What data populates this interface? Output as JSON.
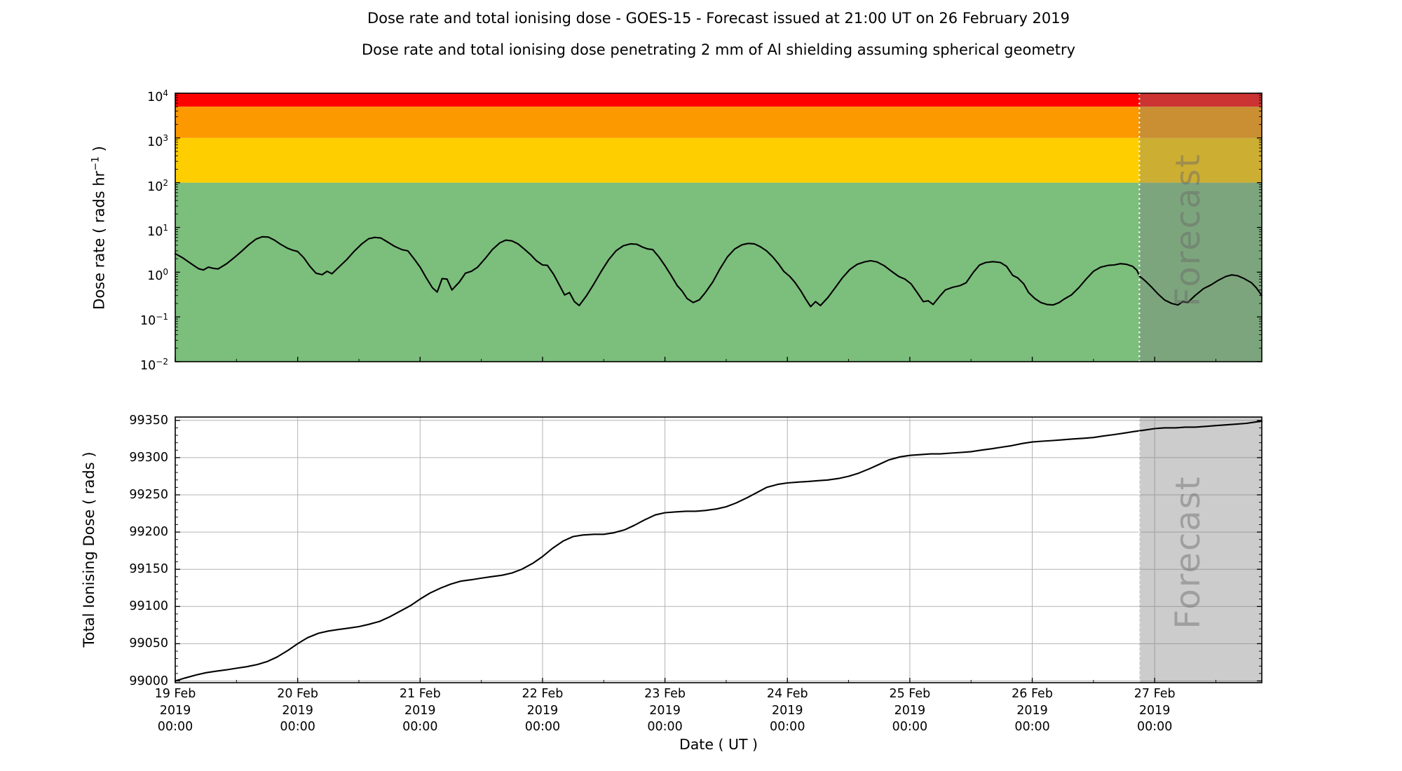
{
  "header": {
    "title_line1": "Dose rate and total ionising dose - GOES-15 - Forecast issued at 21:00 UT on 26 February 2019",
    "title_line2": "Dose rate and total ionising dose penetrating 2 mm of Al shielding assuming spherical geometry"
  },
  "dose_rate_plot": {
    "ylabel_prefix": "Dose rate ( rads hr",
    "ylabel_sup": "−1",
    "ylabel_suffix": " )",
    "forecast_label": "Forecast"
  },
  "tid_plot": {
    "ylabel": "Total Ionising Dose ( rads )",
    "forecast_label": "Forecast"
  },
  "x_axis": {
    "label": "Date ( UT )",
    "ticks": [
      {
        "date": "19 Feb",
        "year": "2019",
        "time": "00:00"
      },
      {
        "date": "20 Feb",
        "year": "2019",
        "time": "00:00"
      },
      {
        "date": "21 Feb",
        "year": "2019",
        "time": "00:00"
      },
      {
        "date": "22 Feb",
        "year": "2019",
        "time": "00:00"
      },
      {
        "date": "23 Feb",
        "year": "2019",
        "time": "00:00"
      },
      {
        "date": "24 Feb",
        "year": "2019",
        "time": "00:00"
      },
      {
        "date": "25 Feb",
        "year": "2019",
        "time": "00:00"
      },
      {
        "date": "26 Feb",
        "year": "2019",
        "time": "00:00"
      },
      {
        "date": "27 Feb",
        "year": "2019",
        "time": "00:00"
      }
    ]
  },
  "colors": {
    "band_red": "#ff0000",
    "band_orange": "#fc9800",
    "band_yellow": "#ffce00",
    "band_green": "#7cbe7c",
    "forecast_overlay": "rgba(128,128,128,0.4)",
    "forecast_text": "#696969",
    "forecast_divider": "#ffffff",
    "grid": "#b3b3b3",
    "curve": "#000000"
  },
  "chart_data": [
    {
      "type": "line",
      "title": "Dose rate",
      "ylabel": "Dose rate ( rads hr^-1 )",
      "yscale": "log",
      "ylim": [
        0.01,
        10000
      ],
      "y_tick_exponents": [
        "4",
        "3",
        "2",
        "1",
        "0",
        "−1",
        "−2"
      ],
      "x_unit": "days since 19 Feb 2019 00:00 UT",
      "xlim": [
        0,
        8.875
      ],
      "forecast_start_x": 7.875,
      "forecast_start_label": "26 Feb 2019 21:00 UT",
      "grid": false,
      "bands": [
        {
          "name": "red-alert",
          "from": 5000,
          "to": 10000,
          "color": "#ff0000"
        },
        {
          "name": "orange-warning",
          "from": 1000,
          "to": 5000,
          "color": "#fc9800"
        },
        {
          "name": "yellow-caution",
          "from": 100,
          "to": 1000,
          "color": "#ffce00"
        },
        {
          "name": "green-nominal",
          "from": 0.01,
          "to": 100,
          "color": "#7cbe7c"
        }
      ],
      "points": [
        [
          0.0,
          2.6
        ],
        [
          0.06,
          2.1
        ],
        [
          0.13,
          1.55
        ],
        [
          0.19,
          1.2
        ],
        [
          0.23,
          1.12
        ],
        [
          0.27,
          1.3
        ],
        [
          0.31,
          1.22
        ],
        [
          0.35,
          1.18
        ],
        [
          0.42,
          1.55
        ],
        [
          0.48,
          2.1
        ],
        [
          0.54,
          2.9
        ],
        [
          0.6,
          4.1
        ],
        [
          0.66,
          5.5
        ],
        [
          0.71,
          6.2
        ],
        [
          0.76,
          6.1
        ],
        [
          0.81,
          5.2
        ],
        [
          0.86,
          4.2
        ],
        [
          0.92,
          3.4
        ],
        [
          0.96,
          3.1
        ],
        [
          1.0,
          2.9
        ],
        [
          1.05,
          2.1
        ],
        [
          1.1,
          1.35
        ],
        [
          1.15,
          0.95
        ],
        [
          1.2,
          0.88
        ],
        [
          1.24,
          1.05
        ],
        [
          1.28,
          0.92
        ],
        [
          1.33,
          1.25
        ],
        [
          1.4,
          1.9
        ],
        [
          1.46,
          2.9
        ],
        [
          1.52,
          4.2
        ],
        [
          1.58,
          5.6
        ],
        [
          1.63,
          6.0
        ],
        [
          1.68,
          5.8
        ],
        [
          1.73,
          4.8
        ],
        [
          1.79,
          3.8
        ],
        [
          1.85,
          3.2
        ],
        [
          1.9,
          3.0
        ],
        [
          1.95,
          2.0
        ],
        [
          2.0,
          1.3
        ],
        [
          2.05,
          0.75
        ],
        [
          2.1,
          0.45
        ],
        [
          2.14,
          0.36
        ],
        [
          2.18,
          0.72
        ],
        [
          2.22,
          0.7
        ],
        [
          2.26,
          0.4
        ],
        [
          2.32,
          0.6
        ],
        [
          2.37,
          0.95
        ],
        [
          2.42,
          1.05
        ],
        [
          2.47,
          1.3
        ],
        [
          2.53,
          2.0
        ],
        [
          2.59,
          3.2
        ],
        [
          2.65,
          4.5
        ],
        [
          2.7,
          5.2
        ],
        [
          2.75,
          5.0
        ],
        [
          2.8,
          4.3
        ],
        [
          2.85,
          3.3
        ],
        [
          2.9,
          2.5
        ],
        [
          2.95,
          1.8
        ],
        [
          3.0,
          1.45
        ],
        [
          3.04,
          1.42
        ],
        [
          3.09,
          0.9
        ],
        [
          3.14,
          0.5
        ],
        [
          3.18,
          0.31
        ],
        [
          3.22,
          0.35
        ],
        [
          3.26,
          0.22
        ],
        [
          3.3,
          0.18
        ],
        [
          3.36,
          0.3
        ],
        [
          3.42,
          0.55
        ],
        [
          3.48,
          1.05
        ],
        [
          3.54,
          1.9
        ],
        [
          3.6,
          3.0
        ],
        [
          3.66,
          3.9
        ],
        [
          3.72,
          4.3
        ],
        [
          3.77,
          4.2
        ],
        [
          3.82,
          3.6
        ],
        [
          3.86,
          3.3
        ],
        [
          3.9,
          3.2
        ],
        [
          3.95,
          2.2
        ],
        [
          4.0,
          1.4
        ],
        [
          4.05,
          0.85
        ],
        [
          4.1,
          0.5
        ],
        [
          4.14,
          0.38
        ],
        [
          4.18,
          0.26
        ],
        [
          4.23,
          0.21
        ],
        [
          4.28,
          0.24
        ],
        [
          4.33,
          0.35
        ],
        [
          4.39,
          0.6
        ],
        [
          4.45,
          1.2
        ],
        [
          4.51,
          2.2
        ],
        [
          4.57,
          3.3
        ],
        [
          4.63,
          4.1
        ],
        [
          4.68,
          4.4
        ],
        [
          4.73,
          4.3
        ],
        [
          4.78,
          3.7
        ],
        [
          4.83,
          3.0
        ],
        [
          4.88,
          2.2
        ],
        [
          4.93,
          1.5
        ],
        [
          4.97,
          1.05
        ],
        [
          5.02,
          0.8
        ],
        [
          5.06,
          0.6
        ],
        [
          5.11,
          0.38
        ],
        [
          5.15,
          0.25
        ],
        [
          5.19,
          0.17
        ],
        [
          5.23,
          0.22
        ],
        [
          5.27,
          0.18
        ],
        [
          5.33,
          0.27
        ],
        [
          5.39,
          0.45
        ],
        [
          5.45,
          0.75
        ],
        [
          5.51,
          1.15
        ],
        [
          5.57,
          1.5
        ],
        [
          5.63,
          1.7
        ],
        [
          5.68,
          1.8
        ],
        [
          5.73,
          1.7
        ],
        [
          5.79,
          1.4
        ],
        [
          5.85,
          1.05
        ],
        [
          5.91,
          0.8
        ],
        [
          5.96,
          0.7
        ],
        [
          6.01,
          0.55
        ],
        [
          6.06,
          0.35
        ],
        [
          6.11,
          0.22
        ],
        [
          6.15,
          0.23
        ],
        [
          6.19,
          0.19
        ],
        [
          6.24,
          0.28
        ],
        [
          6.29,
          0.4
        ],
        [
          6.35,
          0.46
        ],
        [
          6.41,
          0.5
        ],
        [
          6.46,
          0.58
        ],
        [
          6.52,
          1.0
        ],
        [
          6.57,
          1.45
        ],
        [
          6.62,
          1.65
        ],
        [
          6.68,
          1.72
        ],
        [
          6.74,
          1.65
        ],
        [
          6.79,
          1.35
        ],
        [
          6.84,
          0.85
        ],
        [
          6.88,
          0.75
        ],
        [
          6.93,
          0.55
        ],
        [
          6.97,
          0.35
        ],
        [
          7.02,
          0.26
        ],
        [
          7.07,
          0.21
        ],
        [
          7.12,
          0.19
        ],
        [
          7.17,
          0.185
        ],
        [
          7.22,
          0.21
        ],
        [
          7.26,
          0.25
        ],
        [
          7.32,
          0.31
        ],
        [
          7.38,
          0.45
        ],
        [
          7.44,
          0.7
        ],
        [
          7.5,
          1.05
        ],
        [
          7.56,
          1.3
        ],
        [
          7.62,
          1.42
        ],
        [
          7.67,
          1.45
        ],
        [
          7.72,
          1.55
        ],
        [
          7.77,
          1.5
        ],
        [
          7.82,
          1.35
        ],
        [
          7.855,
          1.1
        ],
        [
          7.875,
          0.82
        ],
        [
          7.92,
          0.65
        ],
        [
          7.97,
          0.48
        ],
        [
          8.03,
          0.32
        ],
        [
          8.08,
          0.24
        ],
        [
          8.14,
          0.2
        ],
        [
          8.19,
          0.185
        ],
        [
          8.23,
          0.22
        ],
        [
          8.27,
          0.21
        ],
        [
          8.33,
          0.3
        ],
        [
          8.4,
          0.43
        ],
        [
          8.46,
          0.52
        ],
        [
          8.52,
          0.66
        ],
        [
          8.58,
          0.8
        ],
        [
          8.63,
          0.87
        ],
        [
          8.68,
          0.83
        ],
        [
          8.73,
          0.72
        ],
        [
          8.79,
          0.58
        ],
        [
          8.83,
          0.45
        ],
        [
          8.875,
          0.3
        ]
      ]
    },
    {
      "type": "line",
      "title": "Total ionising dose",
      "ylabel": "Total Ionising Dose ( rads )",
      "yscale": "linear",
      "ylim": [
        99000,
        99350
      ],
      "yticks": [
        99000,
        99050,
        99100,
        99150,
        99200,
        99250,
        99300,
        99350
      ],
      "x_unit": "days since 19 Feb 2019 00:00 UT",
      "xlim": [
        0,
        8.875
      ],
      "forecast_start_x": 7.875,
      "grid": true,
      "points": [
        [
          0.0,
          99000
        ],
        [
          0.08,
          99004
        ],
        [
          0.17,
          99008
        ],
        [
          0.25,
          99011
        ],
        [
          0.33,
          99013
        ],
        [
          0.42,
          99015
        ],
        [
          0.5,
          99017
        ],
        [
          0.58,
          99019
        ],
        [
          0.67,
          99022
        ],
        [
          0.75,
          99026
        ],
        [
          0.83,
          99032
        ],
        [
          0.92,
          99041
        ],
        [
          1.0,
          99050
        ],
        [
          1.08,
          99058
        ],
        [
          1.17,
          99064
        ],
        [
          1.25,
          99067
        ],
        [
          1.33,
          99069
        ],
        [
          1.42,
          99071
        ],
        [
          1.5,
          99073
        ],
        [
          1.58,
          99076
        ],
        [
          1.67,
          99080
        ],
        [
          1.75,
          99086
        ],
        [
          1.83,
          99093
        ],
        [
          1.92,
          99101
        ],
        [
          2.0,
          99110
        ],
        [
          2.08,
          99118
        ],
        [
          2.17,
          99125
        ],
        [
          2.25,
          99130
        ],
        [
          2.33,
          99134
        ],
        [
          2.42,
          99136
        ],
        [
          2.5,
          99138
        ],
        [
          2.58,
          99140
        ],
        [
          2.67,
          99142
        ],
        [
          2.75,
          99145
        ],
        [
          2.83,
          99150
        ],
        [
          2.92,
          99158
        ],
        [
          3.0,
          99167
        ],
        [
          3.08,
          99178
        ],
        [
          3.17,
          99188
        ],
        [
          3.25,
          99194
        ],
        [
          3.33,
          99196
        ],
        [
          3.42,
          99197
        ],
        [
          3.5,
          99197
        ],
        [
          3.58,
          99199
        ],
        [
          3.67,
          99203
        ],
        [
          3.75,
          99209
        ],
        [
          3.83,
          99216
        ],
        [
          3.92,
          99223
        ],
        [
          4.0,
          99226
        ],
        [
          4.08,
          99227
        ],
        [
          4.17,
          99228
        ],
        [
          4.25,
          99228
        ],
        [
          4.33,
          99229
        ],
        [
          4.42,
          99231
        ],
        [
          4.5,
          99234
        ],
        [
          4.58,
          99239
        ],
        [
          4.67,
          99246
        ],
        [
          4.75,
          99253
        ],
        [
          4.83,
          99260
        ],
        [
          4.92,
          99264
        ],
        [
          5.0,
          99266
        ],
        [
          5.08,
          99267
        ],
        [
          5.17,
          99268
        ],
        [
          5.25,
          99269
        ],
        [
          5.33,
          99270
        ],
        [
          5.42,
          99272
        ],
        [
          5.5,
          99275
        ],
        [
          5.58,
          99279
        ],
        [
          5.67,
          99285
        ],
        [
          5.75,
          99291
        ],
        [
          5.83,
          99297
        ],
        [
          5.92,
          99301
        ],
        [
          6.0,
          99303
        ],
        [
          6.08,
          99304
        ],
        [
          6.17,
          99305
        ],
        [
          6.25,
          99305
        ],
        [
          6.33,
          99306
        ],
        [
          6.42,
          99307
        ],
        [
          6.5,
          99308
        ],
        [
          6.58,
          99310
        ],
        [
          6.67,
          99312
        ],
        [
          6.75,
          99314
        ],
        [
          6.83,
          99316
        ],
        [
          6.92,
          99319
        ],
        [
          7.0,
          99321
        ],
        [
          7.08,
          99322
        ],
        [
          7.17,
          99323
        ],
        [
          7.25,
          99324
        ],
        [
          7.33,
          99325
        ],
        [
          7.42,
          99326
        ],
        [
          7.5,
          99327
        ],
        [
          7.58,
          99329
        ],
        [
          7.67,
          99331
        ],
        [
          7.75,
          99333
        ],
        [
          7.83,
          99335
        ],
        [
          7.875,
          99336
        ],
        [
          7.92,
          99337
        ],
        [
          8.0,
          99339
        ],
        [
          8.08,
          99340
        ],
        [
          8.17,
          99340
        ],
        [
          8.25,
          99341
        ],
        [
          8.33,
          99341
        ],
        [
          8.42,
          99342
        ],
        [
          8.5,
          99343
        ],
        [
          8.58,
          99344
        ],
        [
          8.67,
          99345
        ],
        [
          8.75,
          99346
        ],
        [
          8.83,
          99348
        ],
        [
          8.875,
          99349
        ]
      ]
    }
  ]
}
